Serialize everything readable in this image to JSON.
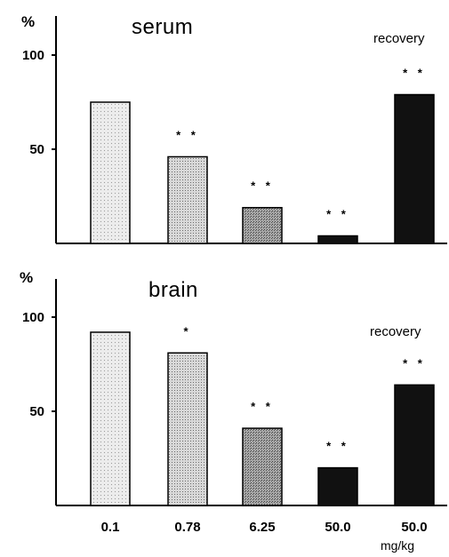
{
  "chart_data": [
    {
      "type": "bar",
      "title": "serum",
      "ylabel": "%",
      "yticks": [
        50,
        100
      ],
      "ylim": [
        0,
        115
      ],
      "categories": [
        "0.1",
        "0.78",
        "6.25",
        "50.0",
        "50.0"
      ],
      "values": [
        75,
        46,
        19,
        4,
        79
      ],
      "significance": [
        "",
        "* *",
        "* *",
        "* *",
        "* *"
      ],
      "annotation": "recovery",
      "bar_colors": [
        "#e6e6e6",
        "#cfcfcf",
        "#9c9c9c",
        "#111111",
        "#111111"
      ]
    },
    {
      "type": "bar",
      "title": "brain",
      "ylabel": "%",
      "yticks": [
        50,
        100
      ],
      "ylim": [
        0,
        115
      ],
      "categories": [
        "0.1",
        "0.78",
        "6.25",
        "50.0",
        "50.0"
      ],
      "values": [
        92,
        81,
        41,
        20,
        64
      ],
      "significance": [
        "",
        "*",
        "* *",
        "* *",
        "* *"
      ],
      "annotation": "recovery",
      "bar_colors": [
        "#e6e6e6",
        "#cfcfcf",
        "#9c9c9c",
        "#111111",
        "#111111"
      ]
    }
  ],
  "xunit": "mg/kg"
}
